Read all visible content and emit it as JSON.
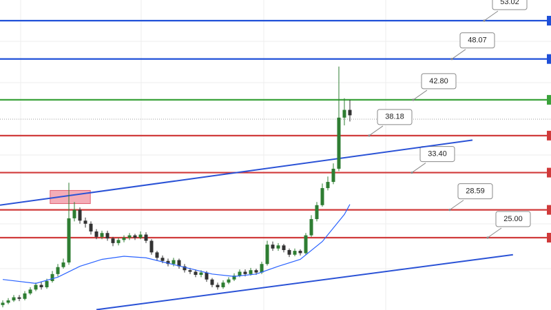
{
  "chart_data": {
    "type": "candlestick",
    "xlim": [
      -0.5,
      99.5
    ],
    "ylim": [
      15.66,
      55.69
    ],
    "up_color": "#2e7d32",
    "down_color": "#333333",
    "open": [
      16.3,
      16.6,
      16.9,
      17.3,
      17.1,
      17.8,
      18.3,
      18.9,
      18.6,
      19.4,
      20.3,
      21.2,
      21.8,
      27.5,
      28.6,
      27.2,
      26.8,
      25.8,
      25.1,
      25.6,
      24.9,
      24.3,
      24.7,
      25.0,
      25.3,
      25.0,
      25.4,
      24.6,
      23.1,
      22.4,
      22.0,
      21.6,
      22.1,
      21.3,
      20.8,
      20.6,
      20.2,
      20.5,
      19.6,
      18.9,
      18.6,
      19.2,
      19.6,
      20.1,
      20.6,
      20.3,
      20.8,
      20.5,
      21.6,
      24.1,
      23.6,
      24.0,
      23.4,
      22.8,
      23.3,
      23.0,
      25.3,
      27.4,
      29.2,
      31.4,
      32.2,
      33.9,
      40.5,
      41.5
    ],
    "high": [
      16.9,
      17.2,
      17.6,
      17.6,
      18.1,
      18.6,
      19.2,
      19.3,
      19.7,
      20.7,
      21.6,
      22.3,
      32.1,
      29.6,
      28.9,
      27.6,
      27.1,
      26.1,
      25.9,
      25.9,
      25.1,
      25.0,
      25.3,
      25.6,
      25.5,
      25.8,
      25.7,
      24.8,
      23.3,
      22.7,
      22.3,
      22.4,
      22.3,
      21.6,
      21.1,
      20.9,
      20.8,
      20.7,
      19.8,
      19.2,
      19.5,
      19.9,
      20.4,
      20.9,
      20.9,
      21.1,
      21.0,
      21.9,
      24.6,
      24.5,
      24.3,
      24.2,
      23.6,
      23.6,
      23.5,
      25.6,
      27.9,
      29.6,
      32.0,
      32.9,
      34.6,
      47.1,
      43.0,
      42.8
    ],
    "low": [
      16.0,
      16.4,
      16.7,
      16.8,
      16.9,
      17.6,
      18.1,
      18.3,
      18.4,
      19.2,
      20.0,
      21.0,
      21.5,
      27.1,
      26.8,
      26.3,
      25.4,
      24.8,
      24.8,
      24.6,
      23.9,
      24.0,
      24.4,
      24.7,
      24.7,
      24.8,
      24.3,
      22.8,
      22.0,
      21.7,
      21.3,
      21.3,
      21.0,
      20.5,
      20.3,
      19.9,
      19.9,
      19.3,
      18.6,
      18.3,
      18.4,
      19.0,
      19.4,
      19.9,
      20.0,
      20.1,
      20.2,
      20.3,
      21.4,
      23.3,
      23.3,
      23.1,
      22.5,
      22.6,
      22.7,
      22.8,
      25.1,
      27.1,
      29.0,
      31.1,
      31.9,
      33.6,
      39.5,
      40.0
    ],
    "close": [
      16.6,
      16.9,
      17.3,
      17.1,
      17.8,
      18.3,
      18.9,
      18.6,
      19.4,
      20.3,
      21.2,
      21.8,
      27.5,
      28.6,
      27.2,
      26.8,
      25.8,
      25.1,
      25.6,
      24.9,
      24.3,
      24.7,
      25.0,
      25.3,
      25.0,
      25.4,
      24.6,
      23.1,
      22.4,
      22.0,
      21.6,
      22.1,
      21.3,
      20.8,
      20.6,
      20.2,
      20.5,
      19.6,
      18.9,
      18.6,
      19.2,
      19.6,
      20.1,
      20.6,
      20.3,
      20.8,
      20.5,
      21.6,
      24.1,
      23.6,
      24.0,
      23.4,
      22.8,
      23.3,
      23.0,
      25.3,
      27.4,
      29.2,
      31.4,
      32.2,
      33.9,
      40.5,
      41.5,
      40.8
    ],
    "moving_average": {
      "color": "#2962ff",
      "x": [
        0,
        6,
        10,
        14,
        18,
        22,
        26,
        30,
        34,
        38,
        42,
        46,
        50,
        54,
        58,
        62,
        63
      ],
      "values": [
        19.6,
        19.1,
        19.9,
        21.3,
        22.2,
        22.6,
        22.4,
        21.7,
        21.0,
        20.3,
        20.0,
        20.3,
        21.3,
        22.2,
        24.5,
        28.0,
        29.3
      ]
    },
    "price_line": 40.3,
    "levels": [
      {
        "value": 53.02,
        "label": "53.02",
        "color": "#1e4fd8"
      },
      {
        "value": 48.07,
        "label": "48.07",
        "color": "#1e4fd8"
      },
      {
        "value": 42.8,
        "label": "42.80",
        "color": "#3aa23a"
      },
      {
        "value": 38.18,
        "label": "38.18",
        "color": "#d03a3a"
      },
      {
        "value": 33.4,
        "label": "33.40",
        "color": "#d03a3a"
      },
      {
        "value": 28.59,
        "label": "28.59",
        "color": "#d03a3a"
      },
      {
        "value": 25.0,
        "label": "25.00",
        "color": "#d03a3a"
      }
    ],
    "trendlines": [
      {
        "x": [
          -0.5,
          85.25
        ],
        "values": [
          29.2,
          37.6
        ],
        "color": "#2a52d6"
      },
      {
        "x": [
          17.0,
          92.6
        ],
        "values": [
          15.7,
          22.8
        ],
        "color": "#2a52d6"
      }
    ],
    "zones": [
      {
        "x": [
          8.6,
          15.9
        ],
        "values": [
          31.1,
          29.4
        ],
        "color": "#f08a9a"
      }
    ]
  }
}
